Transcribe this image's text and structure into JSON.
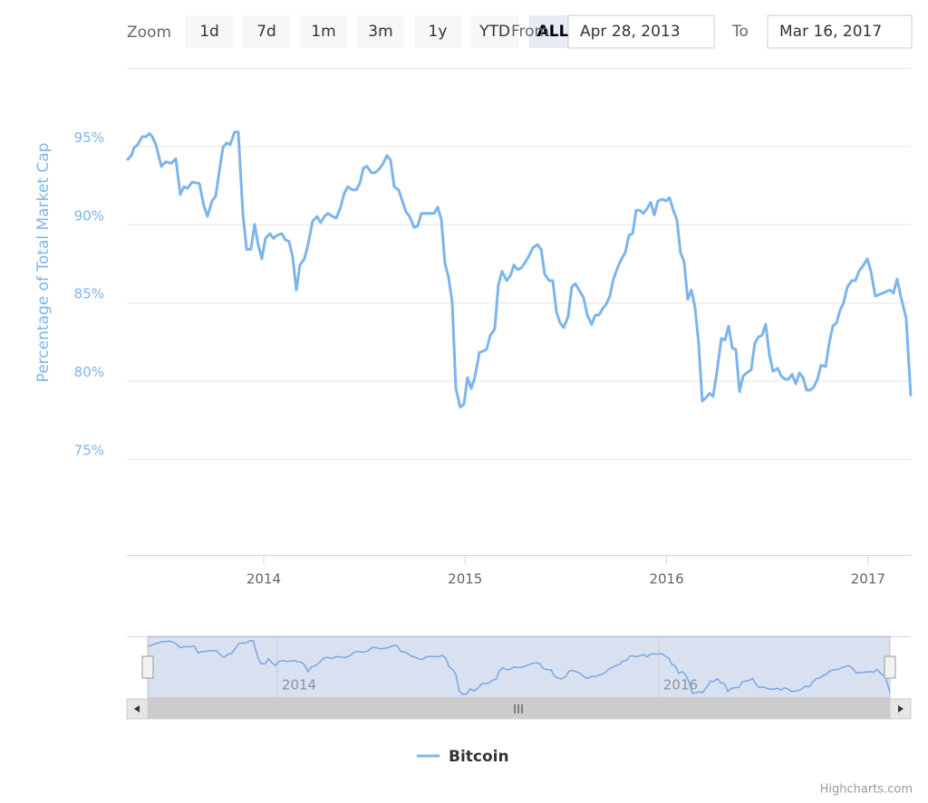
{
  "chart_data": {
    "type": "line",
    "y_axis_title": "Percentage of Total Market Cap",
    "range_selector": {
      "label": "Zoom",
      "buttons": [
        "1d",
        "7d",
        "1m",
        "3m",
        "1y",
        "YTD",
        "ALL"
      ],
      "selected": 6,
      "from_label": "From",
      "from": "Apr 28, 2013",
      "to_label": "To",
      "to": "Mar 16, 2017"
    },
    "x": [
      2013.321,
      2013.343,
      2013.357,
      2013.375,
      2013.397,
      2013.415,
      2013.433,
      2013.447,
      2013.465,
      2013.492,
      2013.514,
      2013.541,
      2013.564,
      2013.586,
      2013.604,
      2013.622,
      2013.645,
      2013.681,
      2013.703,
      2013.721,
      2013.744,
      2013.762,
      2013.78,
      2013.798,
      2013.816,
      2013.834,
      2013.856,
      2013.874,
      2013.897,
      2013.915,
      2013.937,
      2013.955,
      2013.973,
      2013.991,
      2014.009,
      2014.031,
      2014.049,
      2014.067,
      2014.09,
      2014.108,
      2014.126,
      2014.144,
      2014.162,
      2014.18,
      2014.202,
      2014.22,
      2014.243,
      2014.265,
      2014.283,
      2014.301,
      2014.319,
      2014.342,
      2014.36,
      2014.382,
      2014.4,
      2014.418,
      2014.441,
      2014.459,
      2014.477,
      2014.495,
      2014.513,
      2014.535,
      2014.553,
      2014.571,
      2014.589,
      2014.612,
      2014.63,
      2014.648,
      2014.67,
      2014.688,
      2014.706,
      2014.724,
      2014.747,
      2014.765,
      2014.783,
      2014.801,
      2014.828,
      2014.846,
      2014.864,
      2014.882,
      2014.9,
      2014.918,
      2014.936,
      2014.954,
      2014.976,
      2014.994,
      2015.012,
      2015.03,
      2015.048,
      2015.071,
      2015.089,
      2015.107,
      2015.125,
      2015.147,
      2015.165,
      2015.183,
      2015.206,
      2015.224,
      2015.242,
      2015.26,
      2015.278,
      2015.3,
      2015.318,
      2015.336,
      2015.359,
      2015.377,
      2015.395,
      2015.417,
      2015.435,
      2015.453,
      2015.471,
      2015.489,
      2015.511,
      2015.529,
      2015.547,
      2015.57,
      2015.588,
      2015.606,
      2015.628,
      2015.646,
      2015.664,
      2015.682,
      2015.7,
      2015.718,
      2015.736,
      2015.759,
      2015.777,
      2015.795,
      2015.813,
      2015.831,
      2015.849,
      2015.867,
      2015.885,
      2015.903,
      2015.921,
      2015.939,
      2015.957,
      2015.979,
      2015.997,
      2016.015,
      2016.033,
      2016.051,
      2016.069,
      2016.087,
      2016.105,
      2016.123,
      2016.141,
      2016.159,
      2016.177,
      2016.195,
      2016.213,
      2016.231,
      2016.249,
      2016.272,
      2016.29,
      2016.308,
      2016.326,
      2016.344,
      2016.362,
      2016.38,
      2016.398,
      2016.42,
      2016.438,
      2016.456,
      2016.474,
      2016.492,
      2016.51,
      2016.528,
      2016.551,
      2016.569,
      2016.587,
      2016.605,
      2016.623,
      2016.641,
      2016.659,
      2016.677,
      2016.695,
      2016.713,
      2016.731,
      2016.749,
      2016.767,
      2016.789,
      2016.807,
      2016.825,
      2016.843,
      2016.861,
      2016.879,
      2016.897,
      2016.919,
      2016.937,
      2016.955,
      2016.978,
      2016.996,
      2017.014,
      2017.036,
      2017.054,
      2017.072,
      2017.09,
      2017.108,
      2017.126,
      2017.144,
      2017.162,
      2017.189,
      2017.212
    ],
    "series": [
      {
        "name": "Bitcoin",
        "color": "#7cb5ec",
        "values": [
          94.1,
          94.4,
          94.9,
          95.1,
          95.6,
          95.6,
          95.8,
          95.6,
          95.1,
          93.7,
          94.0,
          93.9,
          94.2,
          91.9,
          92.4,
          92.3,
          92.7,
          92.6,
          91.2,
          90.5,
          91.5,
          91.8,
          93.4,
          94.9,
          95.2,
          95.1,
          95.9,
          95.9,
          90.7,
          88.4,
          88.4,
          90.0,
          88.7,
          87.8,
          89.1,
          89.4,
          89.1,
          89.3,
          89.4,
          89.0,
          88.9,
          87.9,
          85.8,
          87.4,
          87.8,
          88.7,
          90.2,
          90.5,
          90.1,
          90.5,
          90.7,
          90.5,
          90.4,
          91.1,
          92.0,
          92.4,
          92.2,
          92.2,
          92.6,
          93.6,
          93.7,
          93.3,
          93.3,
          93.5,
          93.8,
          94.4,
          94.1,
          92.4,
          92.2,
          91.5,
          90.8,
          90.5,
          89.8,
          89.9,
          90.7,
          90.7,
          90.7,
          90.7,
          91.1,
          90.3,
          87.5,
          86.6,
          85.0,
          79.5,
          78.3,
          78.5,
          80.2,
          79.5,
          80.2,
          81.8,
          81.9,
          82.0,
          82.9,
          83.3,
          86.1,
          87.0,
          86.4,
          86.7,
          87.4,
          87.1,
          87.2,
          87.6,
          88.0,
          88.5,
          88.7,
          88.4,
          86.8,
          86.4,
          86.4,
          84.4,
          83.7,
          83.4,
          84.1,
          86.0,
          86.2,
          85.7,
          85.3,
          84.2,
          83.6,
          84.2,
          84.2,
          84.6,
          84.9,
          85.4,
          86.5,
          87.3,
          87.8,
          88.2,
          89.3,
          89.4,
          90.9,
          90.9,
          90.7,
          91.0,
          91.4,
          90.6,
          91.5,
          91.6,
          91.5,
          91.7,
          90.9,
          90.3,
          88.2,
          87.6,
          85.2,
          85.8,
          84.7,
          82.4,
          78.7,
          78.9,
          79.2,
          79.0,
          80.5,
          82.7,
          82.6,
          83.5,
          82.1,
          82.0,
          79.3,
          80.3,
          80.5,
          80.7,
          82.4,
          82.8,
          82.9,
          83.6,
          81.7,
          80.6,
          80.8,
          80.3,
          80.1,
          80.1,
          80.4,
          79.8,
          80.5,
          80.2,
          79.4,
          79.4,
          79.6,
          80.1,
          81.0,
          80.9,
          82.4,
          83.5,
          83.7,
          84.5,
          85.0,
          86.0,
          86.4,
          86.4,
          87.0,
          87.4,
          87.8,
          87.0,
          85.4,
          85.5,
          85.6,
          85.7,
          85.8,
          85.6,
          86.5,
          85.4,
          84.0,
          79.0
        ]
      }
    ],
    "xlim": [
      2013.321,
      2017.212
    ],
    "xticks": [
      2014,
      2015,
      2016,
      2017
    ],
    "ylim": [
      68.86,
      100
    ],
    "yticks": [
      {
        "value": 75,
        "label": "75%"
      },
      {
        "value": 80,
        "label": "80%"
      },
      {
        "value": 85,
        "label": "85%"
      },
      {
        "value": 90,
        "label": "90%"
      },
      {
        "value": 95,
        "label": "95%"
      }
    ],
    "grid": true,
    "navigator": {
      "xticks": [
        2014,
        2016
      ],
      "ylim": [
        77.5,
        97
      ]
    },
    "credits": "Highcharts.com"
  }
}
